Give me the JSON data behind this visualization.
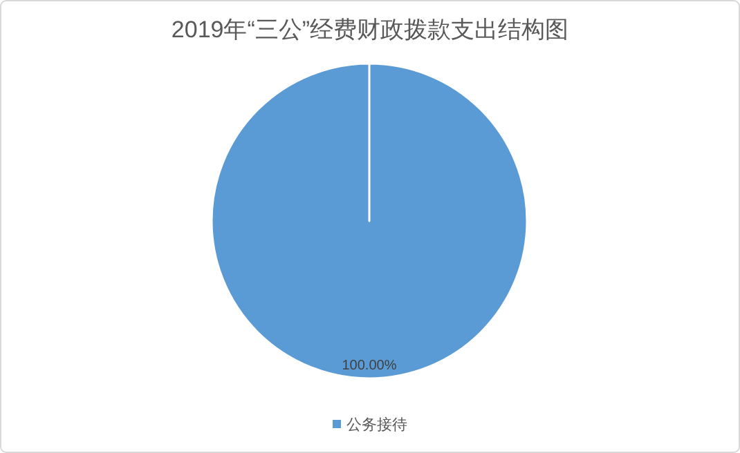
{
  "chart_data": {
    "type": "pie",
    "title": "2019年“三公”经费财政拨款支出结构图",
    "categories": [
      "公务接待"
    ],
    "values": [
      100
    ],
    "colors": [
      "#5b9bd5"
    ],
    "value_labels": [
      "100.00%"
    ],
    "legend": "bottom"
  }
}
